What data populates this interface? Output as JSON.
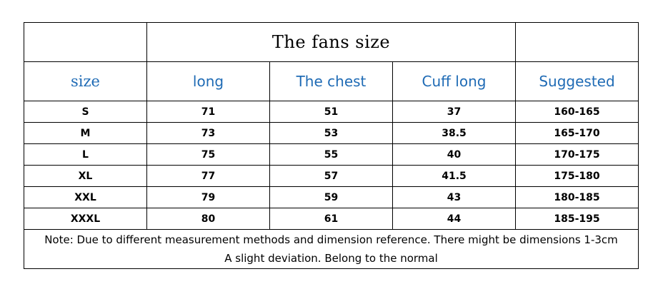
{
  "title": "The fans size",
  "headers": [
    "size",
    "long",
    "The chest",
    "Cuff long",
    "Suggested"
  ],
  "rows": [
    [
      "S",
      "71",
      "51",
      "37",
      "160-165"
    ],
    [
      "M",
      "73",
      "53",
      "38.5",
      "165-170"
    ],
    [
      "L",
      "75",
      "55",
      "40",
      "170-175"
    ],
    [
      "XL",
      "77",
      "57",
      "41.5",
      "175-180"
    ],
    [
      "XXL",
      "79",
      "59",
      "43",
      "180-185"
    ],
    [
      "XXXL",
      "80",
      "61",
      "44",
      "185-195"
    ]
  ],
  "note": {
    "line1": "Note: Due to different measurement methods and dimension reference. There might be dimensions 1-3cm",
    "line2": "A slight deviation. Belong to the normal"
  },
  "colors": {
    "header_text": "#1f6bb5",
    "border": "#000000"
  }
}
